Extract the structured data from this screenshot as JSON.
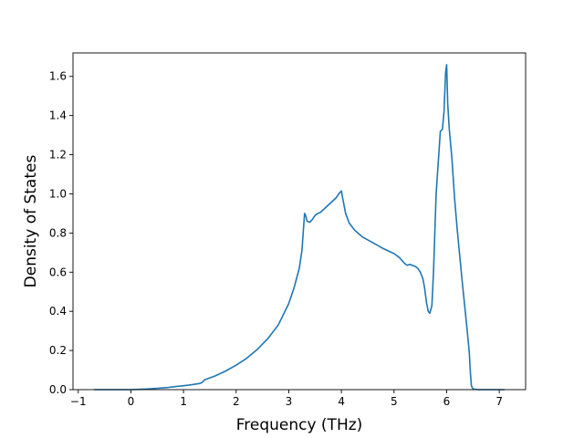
{
  "chart_data": {
    "type": "line",
    "title": "",
    "xlabel": "Frequency (THz)",
    "ylabel": "Density of States",
    "xlim": [
      -1.1,
      7.5
    ],
    "ylim": [
      0.0,
      1.72
    ],
    "xticks": [
      -1,
      0,
      1,
      2,
      3,
      4,
      5,
      6,
      7
    ],
    "yticks": [
      0.0,
      0.2,
      0.4,
      0.6,
      0.8,
      1.0,
      1.2,
      1.4,
      1.6
    ],
    "xtick_labels": [
      "−1",
      "0",
      "1",
      "2",
      "3",
      "4",
      "5",
      "6",
      "7"
    ],
    "ytick_labels": [
      "0.0",
      "0.2",
      "0.4",
      "0.6",
      "0.8",
      "1.0",
      "1.2",
      "1.4",
      "1.6"
    ],
    "grid": false,
    "legend": "none",
    "line_color": "#1f77b4",
    "series": [
      {
        "x": [
          -0.7,
          -0.3,
          0.0,
          0.3,
          0.5,
          0.7,
          0.9,
          1.1,
          1.3,
          1.35,
          1.4,
          1.6,
          1.8,
          2.0,
          2.2,
          2.4,
          2.6,
          2.8,
          3.0,
          3.1,
          3.2,
          3.25,
          3.3,
          3.32,
          3.35,
          3.4,
          3.45,
          3.5,
          3.55,
          3.6,
          3.7,
          3.8,
          3.9,
          3.95,
          4.0,
          4.03,
          4.08,
          4.15,
          4.25,
          4.4,
          4.6,
          4.8,
          5.0,
          5.1,
          5.2,
          5.25,
          5.3,
          5.4,
          5.45,
          5.5,
          5.55,
          5.58,
          5.62,
          5.65,
          5.68,
          5.72,
          5.75,
          5.8,
          5.85,
          5.88,
          5.92,
          5.95,
          5.98,
          6.0,
          6.02,
          6.05,
          6.1,
          6.15,
          6.2,
          6.3,
          6.38,
          6.43,
          6.45,
          6.47,
          6.5,
          6.6,
          6.8,
          7.0,
          7.1
        ],
        "y": [
          0.0,
          0.0,
          0.0,
          0.003,
          0.007,
          0.011,
          0.017,
          0.023,
          0.031,
          0.036,
          0.05,
          0.07,
          0.095,
          0.125,
          0.16,
          0.205,
          0.26,
          0.33,
          0.44,
          0.52,
          0.62,
          0.71,
          0.9,
          0.89,
          0.86,
          0.855,
          0.87,
          0.89,
          0.9,
          0.905,
          0.93,
          0.955,
          0.98,
          1.0,
          1.015,
          0.97,
          0.9,
          0.85,
          0.815,
          0.78,
          0.75,
          0.72,
          0.695,
          0.675,
          0.645,
          0.635,
          0.64,
          0.63,
          0.62,
          0.6,
          0.565,
          0.52,
          0.44,
          0.4,
          0.39,
          0.43,
          0.6,
          1.0,
          1.2,
          1.32,
          1.33,
          1.42,
          1.62,
          1.66,
          1.46,
          1.33,
          1.18,
          0.98,
          0.82,
          0.54,
          0.33,
          0.19,
          0.09,
          0.02,
          0.003,
          0.0,
          0.0,
          0.0,
          0.0
        ]
      }
    ]
  }
}
